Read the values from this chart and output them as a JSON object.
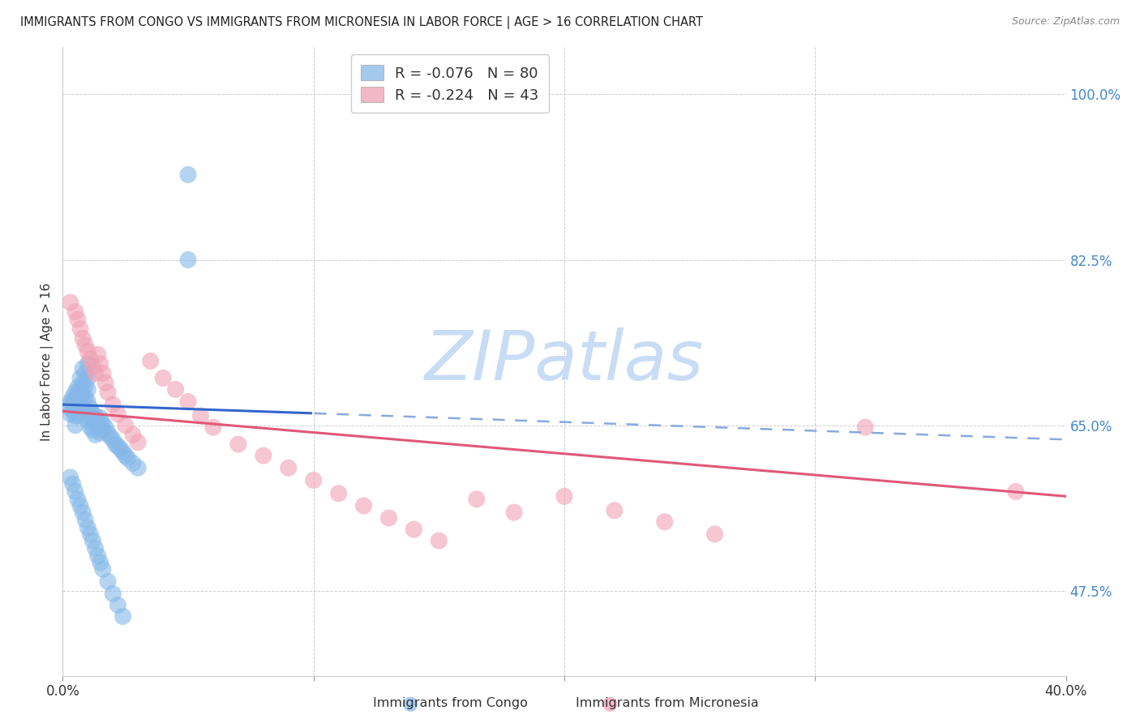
{
  "title": "IMMIGRANTS FROM CONGO VS IMMIGRANTS FROM MICRONESIA IN LABOR FORCE | AGE > 16 CORRELATION CHART",
  "source": "Source: ZipAtlas.com",
  "ylabel": "In Labor Force | Age > 16",
  "congo_color": "#85b8e8",
  "micronesia_color": "#f0a0b5",
  "trendline_congo_solid_color": "#3366cc",
  "trendline_micro_color": "#e05878",
  "trendline_congo_dash_color": "#88aadd",
  "legend_R_congo": "-0.076",
  "legend_N_congo": "80",
  "legend_R_micro": "-0.224",
  "legend_N_micro": "43",
  "xlim_min": 0.0,
  "xlim_max": 0.4,
  "ylim_min": 0.385,
  "ylim_max": 1.05,
  "ytick_vals": [
    0.475,
    0.65,
    0.825,
    1.0
  ],
  "ytick_labels": [
    "47.5%",
    "65.0%",
    "82.5%",
    "100.0%"
  ],
  "watermark_text": "ZIPatlas",
  "watermark_color": "#c8ddf5",
  "congo_x": [
    0.002,
    0.003,
    0.003,
    0.004,
    0.004,
    0.004,
    0.005,
    0.005,
    0.005,
    0.005,
    0.005,
    0.006,
    0.006,
    0.006,
    0.006,
    0.007,
    0.007,
    0.007,
    0.007,
    0.008,
    0.008,
    0.008,
    0.008,
    0.009,
    0.009,
    0.009,
    0.01,
    0.01,
    0.01,
    0.01,
    0.01,
    0.01,
    0.011,
    0.011,
    0.011,
    0.012,
    0.012,
    0.012,
    0.013,
    0.013,
    0.013,
    0.014,
    0.014,
    0.015,
    0.015,
    0.015,
    0.016,
    0.016,
    0.017,
    0.018,
    0.019,
    0.02,
    0.021,
    0.022,
    0.023,
    0.024,
    0.025,
    0.026,
    0.028,
    0.03,
    0.003,
    0.004,
    0.005,
    0.006,
    0.007,
    0.008,
    0.009,
    0.01,
    0.011,
    0.012,
    0.013,
    0.014,
    0.015,
    0.016,
    0.018,
    0.02,
    0.022,
    0.024,
    0.05,
    0.05
  ],
  "congo_y": [
    0.67,
    0.675,
    0.662,
    0.68,
    0.672,
    0.665,
    0.685,
    0.678,
    0.67,
    0.66,
    0.65,
    0.69,
    0.68,
    0.67,
    0.66,
    0.7,
    0.688,
    0.675,
    0.665,
    0.71,
    0.695,
    0.682,
    0.67,
    0.705,
    0.692,
    0.68,
    0.715,
    0.7,
    0.688,
    0.675,
    0.665,
    0.655,
    0.668,
    0.658,
    0.648,
    0.662,
    0.655,
    0.645,
    0.66,
    0.65,
    0.64,
    0.655,
    0.648,
    0.658,
    0.65,
    0.642,
    0.652,
    0.645,
    0.648,
    0.642,
    0.638,
    0.635,
    0.63,
    0.628,
    0.625,
    0.622,
    0.618,
    0.615,
    0.61,
    0.605,
    0.595,
    0.588,
    0.58,
    0.572,
    0.565,
    0.558,
    0.55,
    0.542,
    0.535,
    0.528,
    0.52,
    0.512,
    0.505,
    0.498,
    0.485,
    0.472,
    0.46,
    0.448,
    0.825,
    0.915
  ],
  "micro_x": [
    0.003,
    0.005,
    0.006,
    0.007,
    0.008,
    0.009,
    0.01,
    0.011,
    0.012,
    0.013,
    0.014,
    0.015,
    0.016,
    0.017,
    0.018,
    0.02,
    0.022,
    0.025,
    0.028,
    0.03,
    0.035,
    0.04,
    0.045,
    0.05,
    0.055,
    0.06,
    0.07,
    0.08,
    0.09,
    0.1,
    0.11,
    0.12,
    0.13,
    0.14,
    0.15,
    0.165,
    0.18,
    0.2,
    0.22,
    0.24,
    0.26,
    0.32,
    0.38
  ],
  "micro_y": [
    0.78,
    0.77,
    0.762,
    0.752,
    0.742,
    0.735,
    0.728,
    0.72,
    0.712,
    0.705,
    0.725,
    0.715,
    0.705,
    0.695,
    0.685,
    0.672,
    0.662,
    0.65,
    0.64,
    0.632,
    0.718,
    0.7,
    0.688,
    0.675,
    0.66,
    0.648,
    0.63,
    0.618,
    0.605,
    0.592,
    0.578,
    0.565,
    0.552,
    0.54,
    0.528,
    0.572,
    0.558,
    0.575,
    0.56,
    0.548,
    0.535,
    0.648,
    0.58
  ]
}
